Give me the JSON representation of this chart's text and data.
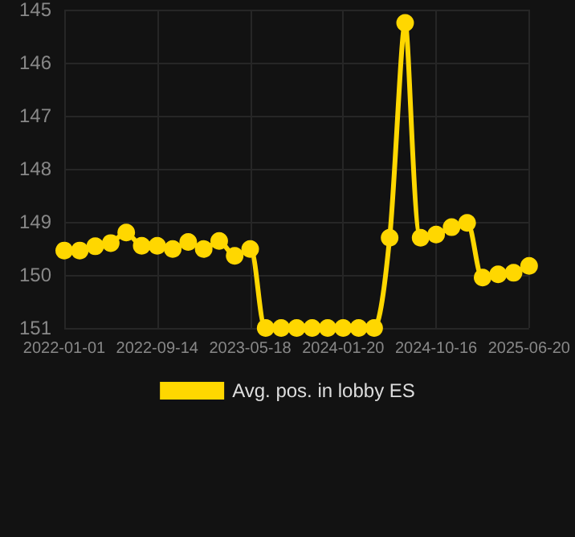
{
  "chart_data": {
    "type": "line",
    "categories": [
      "2022-01-01",
      null,
      null,
      null,
      null,
      null,
      "2022-09-14",
      null,
      null,
      null,
      null,
      null,
      "2023-05-18",
      null,
      null,
      null,
      null,
      null,
      "2024-01-20",
      null,
      null,
      null,
      null,
      null,
      "2024-10-16",
      null,
      null,
      null,
      null,
      null,
      "2025-06-20"
    ],
    "series": [
      {
        "name": "Avg. pos. in lobby ES",
        "color": "#ffd700",
        "values": [
          149.54,
          149.54,
          149.46,
          149.4,
          149.2,
          149.45,
          149.45,
          149.51,
          149.38,
          149.51,
          149.36,
          149.64,
          149.51,
          151,
          151,
          151,
          151,
          151,
          151,
          151,
          151,
          149.3,
          145.25,
          149.3,
          149.24,
          149.1,
          149.02,
          150.05,
          149.99,
          149.96,
          149.83
        ]
      }
    ],
    "ylim": [
      151,
      145
    ],
    "yticks": [
      145,
      146,
      147,
      148,
      149,
      150,
      151
    ],
    "grid": true,
    "legend": "bottom",
    "marker": "circle",
    "line_style": "solid"
  }
}
